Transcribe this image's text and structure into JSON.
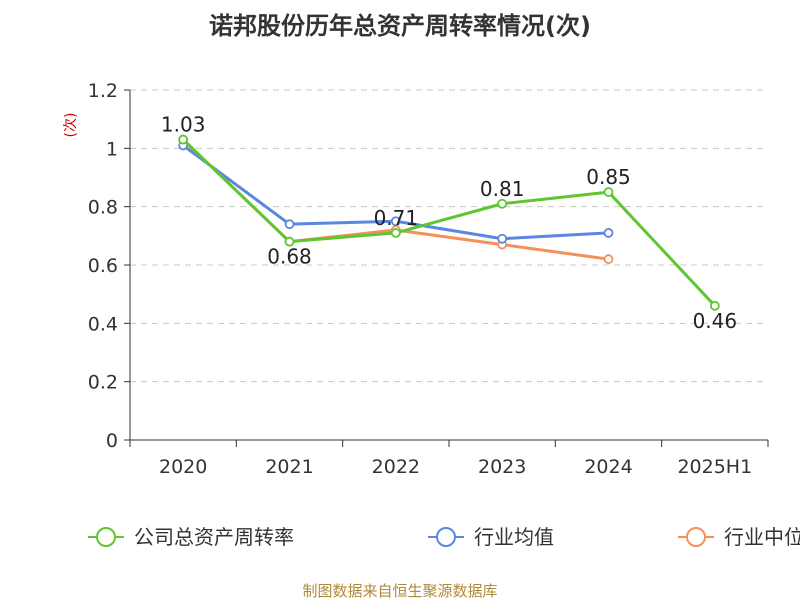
{
  "chart_data": {
    "type": "line",
    "title": "诺邦股份历年总资产周转率情况(次)",
    "ylabel": "(次)",
    "xlabel": "",
    "categories": [
      "2020",
      "2021",
      "2022",
      "2023",
      "2024",
      "2025H1"
    ],
    "ylim": [
      0,
      1.2
    ],
    "yticks": [
      "0",
      "0.2",
      "0.4",
      "0.6",
      "0.8",
      "1",
      "1.2"
    ],
    "grid": true,
    "legend_position": "bottom",
    "series": [
      {
        "name": "公司总资产周转率",
        "color": "#5fc631",
        "values": [
          1.03,
          0.68,
          0.71,
          0.81,
          0.85,
          0.46
        ],
        "labels": [
          "1.03",
          "0.68",
          "0.71",
          "0.81",
          "0.85",
          "0.46"
        ]
      },
      {
        "name": "行业均值",
        "color": "#5b87e0",
        "values": [
          1.01,
          0.74,
          0.75,
          0.69,
          0.71,
          null
        ]
      },
      {
        "name": "行业中位数",
        "color": "#f5905a",
        "values": [
          1.03,
          0.68,
          0.72,
          0.67,
          0.62,
          null
        ]
      }
    ],
    "source": "制图数据来自恒生聚源数据库"
  }
}
